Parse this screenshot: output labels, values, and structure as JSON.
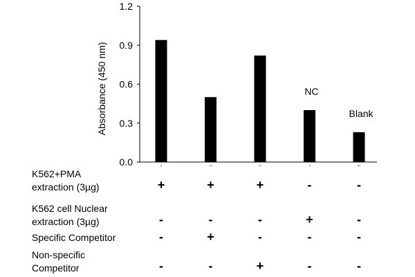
{
  "chart_data": {
    "type": "bar",
    "categories": [
      "1",
      "2",
      "3",
      "4",
      "5"
    ],
    "values": [
      0.94,
      0.5,
      0.82,
      0.4,
      0.23
    ],
    "title": "",
    "xlabel": "",
    "ylabel": "Absorbance (450 nm)",
    "ylim": [
      0,
      1.2
    ],
    "yticks": [
      "0.0",
      "0.3",
      "0.6",
      "0.9",
      "1.2"
    ],
    "bar_color": "#000000",
    "annotations": [
      {
        "category": "4",
        "text": "NC"
      },
      {
        "category": "5",
        "text": "Blank"
      }
    ]
  },
  "conditions": [
    {
      "label_lines": [
        "K562+PMA",
        "extraction (3µg)"
      ],
      "signs": [
        "+",
        "+",
        "+",
        "-",
        "-"
      ]
    },
    {
      "label_lines": [
        "K562 cell Nuclear",
        "extraction (3µg)"
      ],
      "signs": [
        "-",
        "-",
        "-",
        "+",
        "-"
      ]
    },
    {
      "label_lines": [
        "Specific Competitor"
      ],
      "signs": [
        "-",
        "+",
        "-",
        "-",
        "-"
      ]
    },
    {
      "label_lines": [
        "Non-specific",
        "Competitor"
      ],
      "signs": [
        "-",
        "-",
        "+",
        "-",
        "-"
      ]
    }
  ]
}
